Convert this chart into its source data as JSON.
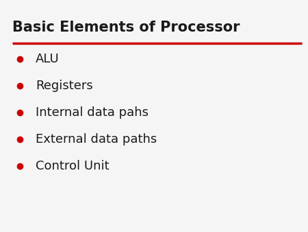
{
  "title": "Basic Elements of Processor",
  "title_color": "#1a1a1a",
  "title_fontsize": 15,
  "title_bold": true,
  "underline_color": "#cc0000",
  "bullet_color": "#cc0000",
  "text_color": "#1a1a1a",
  "items": [
    "ALU",
    "Registers",
    "Internal data pahs",
    "External data paths",
    "Control Unit"
  ],
  "item_fontsize": 13,
  "background_color": "#f5f5f5"
}
